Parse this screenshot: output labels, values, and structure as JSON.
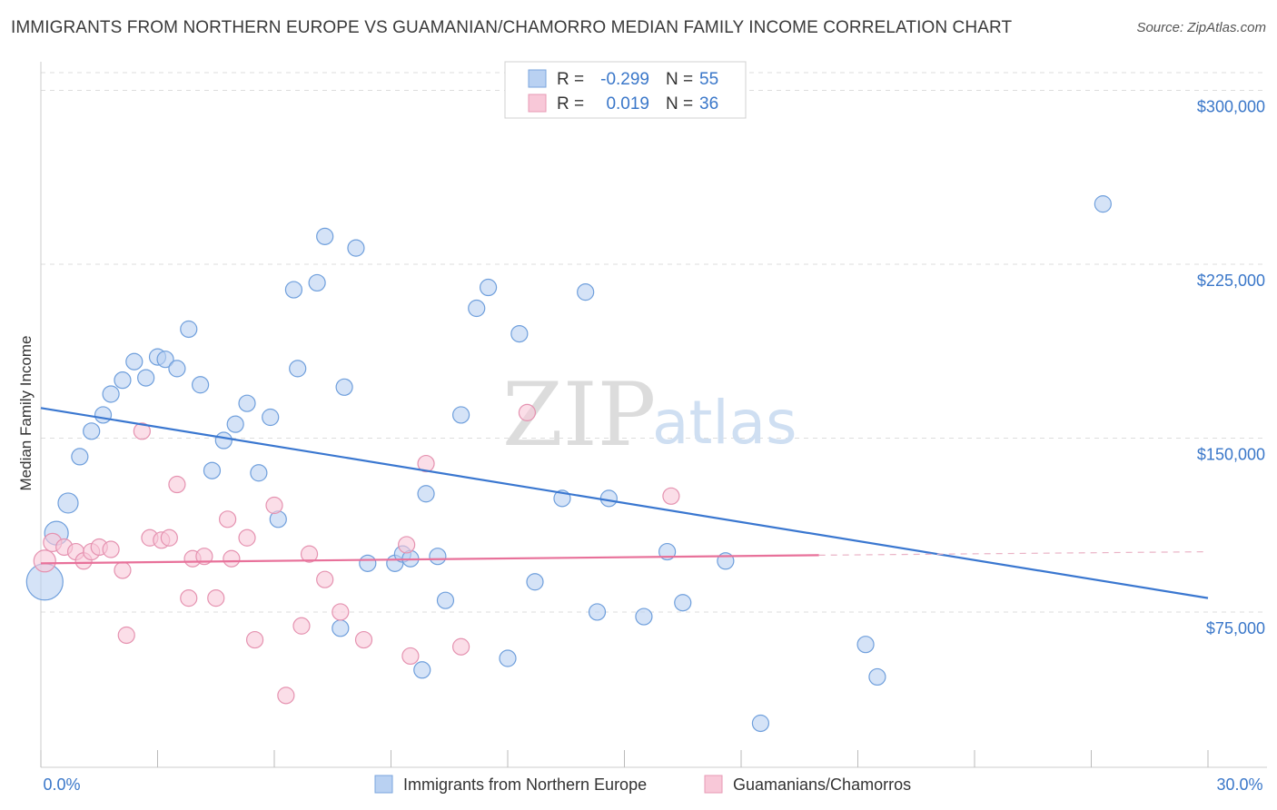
{
  "title": "IMMIGRANTS FROM NORTHERN EUROPE VS GUAMANIAN/CHAMORRO MEDIAN FAMILY INCOME CORRELATION CHART",
  "source": "Source: ZipAtlas.com",
  "watermark": {
    "zip": "ZIP",
    "atlas": "atlas"
  },
  "colors": {
    "blue": "#3a77d0",
    "blue_fill": "#b9d1f2",
    "pink": "#e8719a",
    "pink_fill": "#f8c8d8",
    "tick_text": "#3a77c9",
    "grid": "#dddddd"
  },
  "legend": {
    "rows": [
      {
        "r_label": "R =",
        "r_value": "-0.299",
        "n_label": "N =",
        "n_value": "55",
        "series": "blue"
      },
      {
        "r_label": "R =",
        "r_value": "0.019",
        "n_label": "N =",
        "n_value": "36",
        "series": "pink"
      }
    ]
  },
  "chart_data": {
    "type": "scatter",
    "title": "IMMIGRANTS FROM NORTHERN EUROPE VS GUAMANIAN/CHAMORRO MEDIAN FAMILY INCOME CORRELATION CHART",
    "xlabel": "",
    "ylabel": "Median Family Income",
    "xlim": [
      0,
      30
    ],
    "ylim": [
      8000,
      310000
    ],
    "x_tick_labels": [
      "0.0%",
      "30.0%"
    ],
    "y_ticks": [
      75000,
      150000,
      225000,
      300000
    ],
    "y_tick_labels": [
      "$75,000",
      "$150,000",
      "$225,000",
      "$300,000"
    ],
    "grid": true,
    "series": [
      {
        "name": "Immigrants from Northern Europe",
        "color": "#3a77d0",
        "points": [
          [
            0.1,
            88000,
            20
          ],
          [
            0.4,
            109000,
            13
          ],
          [
            0.7,
            122000,
            11
          ],
          [
            1.0,
            142000,
            9
          ],
          [
            1.3,
            153000,
            9
          ],
          [
            1.6,
            160000,
            9
          ],
          [
            1.8,
            169000,
            9
          ],
          [
            2.1,
            175000,
            9
          ],
          [
            2.4,
            183000,
            9
          ],
          [
            2.7,
            176000,
            9
          ],
          [
            3.0,
            185000,
            9
          ],
          [
            3.2,
            184000,
            9
          ],
          [
            3.5,
            180000,
            9
          ],
          [
            3.8,
            197000,
            9
          ],
          [
            4.1,
            173000,
            9
          ],
          [
            4.4,
            136000,
            9
          ],
          [
            4.7,
            149000,
            9
          ],
          [
            5.0,
            156000,
            9
          ],
          [
            5.3,
            165000,
            9
          ],
          [
            5.6,
            135000,
            9
          ],
          [
            5.9,
            159000,
            9
          ],
          [
            6.1,
            115000,
            9
          ],
          [
            6.5,
            214000,
            9
          ],
          [
            6.6,
            180000,
            9
          ],
          [
            7.1,
            217000,
            9
          ],
          [
            7.3,
            237000,
            9
          ],
          [
            7.7,
            68000,
            9
          ],
          [
            7.8,
            172000,
            9
          ],
          [
            8.1,
            232000,
            9
          ],
          [
            8.4,
            96000,
            9
          ],
          [
            9.1,
            96000,
            9
          ],
          [
            9.3,
            100000,
            9
          ],
          [
            9.5,
            98000,
            9
          ],
          [
            9.8,
            50000,
            9
          ],
          [
            9.9,
            126000,
            9
          ],
          [
            10.2,
            99000,
            9
          ],
          [
            10.4,
            80000,
            9
          ],
          [
            10.8,
            160000,
            9
          ],
          [
            11.2,
            206000,
            9
          ],
          [
            11.5,
            215000,
            9
          ],
          [
            12.0,
            55000,
            9
          ],
          [
            12.3,
            195000,
            9
          ],
          [
            12.7,
            88000,
            9
          ],
          [
            13.4,
            124000,
            9
          ],
          [
            14.0,
            213000,
            9
          ],
          [
            14.3,
            75000,
            9
          ],
          [
            14.6,
            124000,
            9
          ],
          [
            15.5,
            73000,
            9
          ],
          [
            16.1,
            101000,
            9
          ],
          [
            16.5,
            79000,
            9
          ],
          [
            17.6,
            97000,
            9
          ],
          [
            18.5,
            27000,
            9
          ],
          [
            21.2,
            61000,
            9
          ],
          [
            21.5,
            47000,
            9
          ],
          [
            27.3,
            251000,
            9
          ]
        ],
        "trend": {
          "x": [
            0,
            30
          ],
          "y": [
            163000,
            81000
          ]
        }
      },
      {
        "name": "Guamanians/Chamorros",
        "color": "#e8719a",
        "points": [
          [
            0.1,
            97000,
            12
          ],
          [
            0.3,
            105000,
            10
          ],
          [
            0.6,
            103000,
            9
          ],
          [
            0.9,
            101000,
            9
          ],
          [
            1.1,
            97000,
            9
          ],
          [
            1.3,
            101000,
            9
          ],
          [
            1.5,
            103000,
            9
          ],
          [
            1.8,
            102000,
            9
          ],
          [
            2.1,
            93000,
            9
          ],
          [
            2.2,
            65000,
            9
          ],
          [
            2.6,
            153000,
            9
          ],
          [
            2.8,
            107000,
            9
          ],
          [
            3.1,
            106000,
            9
          ],
          [
            3.3,
            107000,
            9
          ],
          [
            3.5,
            130000,
            9
          ],
          [
            3.8,
            81000,
            9
          ],
          [
            3.9,
            98000,
            9
          ],
          [
            4.2,
            99000,
            9
          ],
          [
            4.5,
            81000,
            9
          ],
          [
            4.8,
            115000,
            9
          ],
          [
            4.9,
            98000,
            9
          ],
          [
            5.3,
            107000,
            9
          ],
          [
            5.5,
            63000,
            9
          ],
          [
            6.0,
            121000,
            9
          ],
          [
            6.3,
            39000,
            9
          ],
          [
            6.7,
            69000,
            9
          ],
          [
            6.9,
            100000,
            9
          ],
          [
            7.3,
            89000,
            9
          ],
          [
            7.7,
            75000,
            9
          ],
          [
            8.3,
            63000,
            9
          ],
          [
            9.4,
            104000,
            9
          ],
          [
            9.5,
            56000,
            9
          ],
          [
            9.9,
            139000,
            9
          ],
          [
            10.8,
            60000,
            9
          ],
          [
            12.5,
            161000,
            9
          ],
          [
            16.2,
            125000,
            9
          ]
        ],
        "trend": {
          "x": [
            0,
            20
          ],
          "y": [
            96000,
            99500
          ]
        },
        "trend_dashed": {
          "x": [
            20,
            30
          ],
          "y": [
            99500,
            101000
          ]
        }
      }
    ],
    "legend_position": "top-center",
    "bottom_legend": [
      "Immigrants from Northern Europe",
      "Guamanians/Chamorros"
    ]
  }
}
